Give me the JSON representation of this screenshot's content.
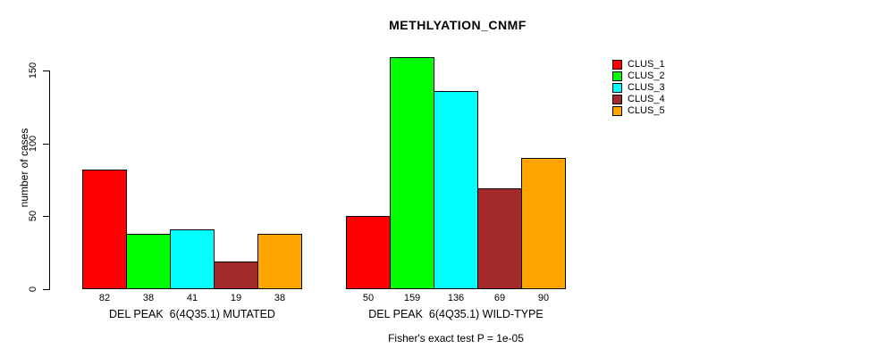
{
  "chart_data": {
    "type": "bar",
    "title": "METHLYATION_CNMF",
    "ylabel": "number of cases",
    "footnote": "Fisher's exact test P = 1e-05",
    "ylim": [
      0,
      150
    ],
    "yticks": [
      0,
      50,
      100,
      150
    ],
    "grid": false,
    "legend_position": "top-right",
    "bar_value_labels_shown": true,
    "categories": [
      "DEL PEAK  6(4Q35.1) MUTATED",
      "DEL PEAK  6(4Q35.1) WILD-TYPE"
    ],
    "series": [
      {
        "name": "CLUS_1",
        "color": "#FF0000",
        "values": [
          82,
          50
        ]
      },
      {
        "name": "CLUS_2",
        "color": "#00FF00",
        "values": [
          38,
          159
        ]
      },
      {
        "name": "CLUS_3",
        "color": "#00FFFF",
        "values": [
          41,
          136
        ]
      },
      {
        "name": "CLUS_4",
        "color": "#A52A2A",
        "values": [
          19,
          69
        ]
      },
      {
        "name": "CLUS_5",
        "color": "#FFA500",
        "values": [
          38,
          90
        ]
      }
    ]
  },
  "colors": {
    "background": "#FFFFFF",
    "axis": "#000000",
    "text": "#000000"
  }
}
